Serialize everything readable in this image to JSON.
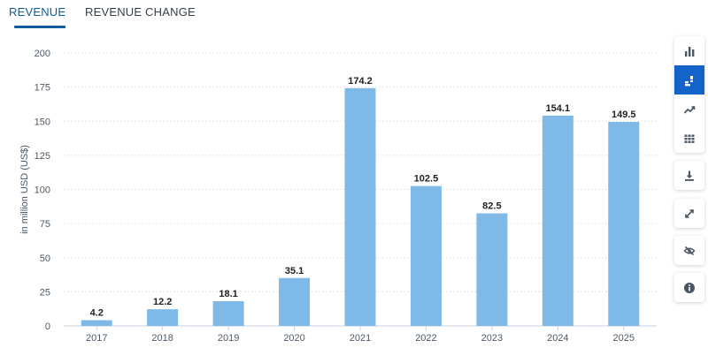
{
  "tabs": [
    {
      "label": "REVENUE",
      "active": true
    },
    {
      "label": "REVENUE CHANGE",
      "active": false
    }
  ],
  "colors": {
    "bar": "#7fb9e7",
    "accent": "#1463c8",
    "tab_active": "#0d5c9e",
    "grid": "#dfe5ee"
  },
  "toolbar": {
    "groups": [
      [
        "bar-chart-icon",
        "sorted-bar-chart-icon",
        "line-chart-icon",
        "table-icon"
      ],
      [
        "download-icon"
      ],
      [
        "fullscreen-icon"
      ],
      [
        "hide-icon"
      ],
      [
        "info-icon"
      ]
    ],
    "active": "sorted-bar-chart-icon"
  },
  "chart_data": {
    "type": "bar",
    "categories": [
      "2017",
      "2018",
      "2019",
      "2020",
      "2021",
      "2022",
      "2023",
      "2024",
      "2025"
    ],
    "values": [
      4.2,
      12.2,
      18.1,
      35.1,
      174.2,
      102.5,
      82.5,
      154.1,
      149.5
    ],
    "value_labels": [
      "4.2",
      "12.2",
      "18.1",
      "35.1",
      "174.2",
      "102.5",
      "82.5",
      "154.1",
      "149.5"
    ],
    "ylabel": "in million USD (US$)",
    "ylim": [
      0,
      200
    ],
    "yticks": [
      0,
      25,
      50,
      75,
      100,
      125,
      150,
      175,
      200
    ],
    "grid": true,
    "legend": "none"
  }
}
